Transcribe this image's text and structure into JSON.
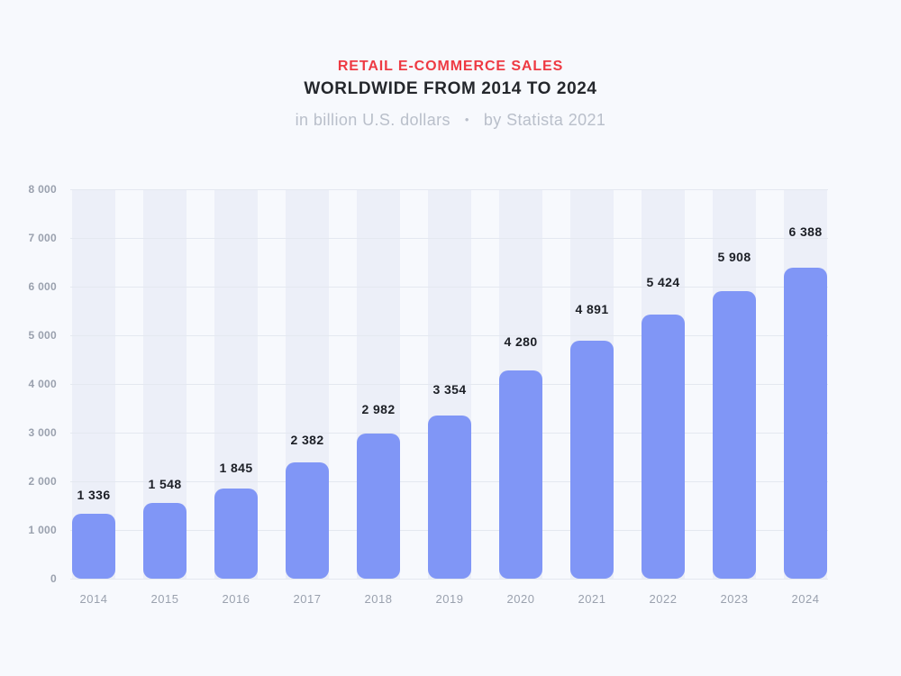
{
  "header": {
    "title_line1": "RETAIL E-COMMERCE SALES",
    "title_line2": "WORLDWIDE FROM 2014 TO 2024",
    "subtitle_unit": "in billion U.S. dollars",
    "subtitle_separator": "•",
    "subtitle_source": "by Statista 2021"
  },
  "colors": {
    "page_bg": "#f7f9fd",
    "accent_red": "#ee3a43",
    "title_dark": "#24272c",
    "subtitle_gray": "#b9bfca",
    "bar_fill": "#8096f6",
    "band_fill": "#eceff8",
    "gridline": "#e4e8f0",
    "axis_label": "#9aa1ae",
    "value_label": "#1c1f26"
  },
  "chart_data": {
    "type": "bar",
    "title": "RETAIL E-COMMERCE SALES WORLDWIDE FROM 2014 TO 2024",
    "unit": "in billion U.S. dollars",
    "source": "by Statista 2021",
    "categories": [
      "2014",
      "2015",
      "2016",
      "2017",
      "2018",
      "2019",
      "2020",
      "2021",
      "2022",
      "2023",
      "2024"
    ],
    "values": [
      1336,
      1548,
      1845,
      2382,
      2982,
      3354,
      4280,
      4891,
      5424,
      5908,
      6388
    ],
    "value_labels": [
      "1 336",
      "1 548",
      "1 845",
      "2 382",
      "2 982",
      "3 354",
      "4 280",
      "4 891",
      "5 424",
      "5 908",
      "6 388"
    ],
    "ylim": [
      0,
      8000
    ],
    "ytick_interval": 1000,
    "ytick_labels": [
      "0",
      "1 000",
      "2 000",
      "3 000",
      "4 000",
      "5 000",
      "6 000",
      "7 000",
      "8 000"
    ],
    "grid": "horizontal",
    "column_bands": true,
    "legend": "none"
  }
}
